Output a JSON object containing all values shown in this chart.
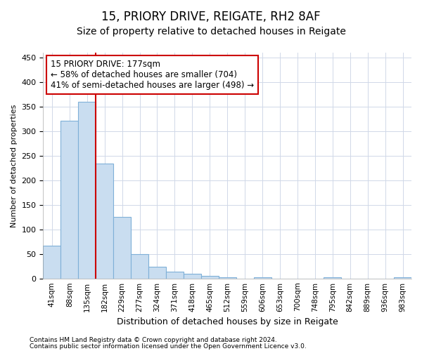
{
  "title": "15, PRIORY DRIVE, REIGATE, RH2 8AF",
  "subtitle": "Size of property relative to detached houses in Reigate",
  "xlabel": "Distribution of detached houses by size in Reigate",
  "ylabel": "Number of detached properties",
  "footer_line1": "Contains HM Land Registry data © Crown copyright and database right 2024.",
  "footer_line2": "Contains public sector information licensed under the Open Government Licence v3.0.",
  "categories": [
    "41sqm",
    "88sqm",
    "135sqm",
    "182sqm",
    "229sqm",
    "277sqm",
    "324sqm",
    "371sqm",
    "418sqm",
    "465sqm",
    "512sqm",
    "559sqm",
    "606sqm",
    "653sqm",
    "700sqm",
    "748sqm",
    "795sqm",
    "842sqm",
    "889sqm",
    "936sqm",
    "983sqm"
  ],
  "bar_values": [
    67,
    321,
    360,
    234,
    126,
    49,
    24,
    14,
    9,
    5,
    3,
    0,
    2,
    0,
    0,
    0,
    2,
    0,
    0,
    0,
    2
  ],
  "bar_color": "#c9ddf0",
  "bar_edge_color": "#7fb0d8",
  "grid_color": "#d0d8e8",
  "vline_color": "#cc0000",
  "annotation_text": "15 PRIORY DRIVE: 177sqm\n← 58% of detached houses are smaller (704)\n41% of semi-detached houses are larger (498) →",
  "annotation_box_color": "#ffffff",
  "annotation_box_edge": "#cc0000",
  "ylim": [
    0,
    460
  ],
  "yticks": [
    0,
    50,
    100,
    150,
    200,
    250,
    300,
    350,
    400,
    450
  ],
  "background_color": "#ffffff",
  "plot_bg_color": "#ffffff",
  "title_fontsize": 12,
  "subtitle_fontsize": 10,
  "xlabel_fontsize": 9,
  "ylabel_fontsize": 8,
  "footer_fontsize": 6.5,
  "annot_fontsize": 8.5
}
